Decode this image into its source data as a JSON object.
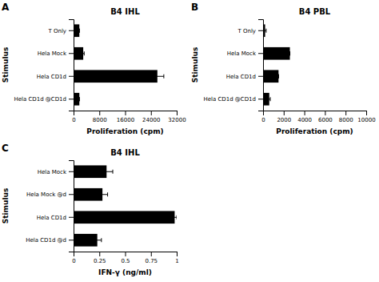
{
  "chart_data": [
    {
      "type": "bar",
      "orientation": "horizontal",
      "title": "B4 IHL",
      "annotations": [
        "A"
      ],
      "categories": [
        "T Only",
        "Hela Mock",
        "Hela CD1d",
        "Hela CD1d @CD1d"
      ],
      "values": [
        1800,
        3000,
        26000,
        1800
      ],
      "errors": [
        0,
        300,
        2000,
        0
      ],
      "color": "#000000",
      "xlim": [
        0,
        32000
      ],
      "xticks": [
        0,
        8000,
        16000,
        24000,
        32000
      ],
      "xlabel": "Proliferation (cpm)",
      "ylabel": "Stimulus",
      "grid": false
    },
    {
      "type": "bar",
      "orientation": "horizontal",
      "title": "B4 PBL",
      "annotations": [
        "B"
      ],
      "categories": [
        "T Only",
        "Hela Mock",
        "Hela CD1d",
        "Hela CD1d @CD1d"
      ],
      "values": [
        200,
        2600,
        1500,
        600
      ],
      "errors": [
        100,
        0,
        0,
        100
      ],
      "color": "#000000",
      "xlim": [
        0,
        10000
      ],
      "xticks": [
        0,
        2000,
        4000,
        6000,
        8000,
        10000
      ],
      "xlabel": "Proliferation (cpm)",
      "ylabel": "Stimulus",
      "grid": false
    },
    {
      "type": "bar",
      "orientation": "horizontal",
      "title": "B4 IHL",
      "annotations": [
        "C"
      ],
      "categories": [
        "Hela Mock",
        "Hela Mock @d",
        "Hela CD1d",
        "Hela CD1d @d"
      ],
      "values": [
        0.32,
        0.28,
        0.98,
        0.23
      ],
      "errors": [
        0.06,
        0.05,
        0.02,
        0.04
      ],
      "color": "#000000",
      "xlim": [
        0,
        1
      ],
      "xticks": [
        0,
        0.25,
        0.5,
        0.75,
        1
      ],
      "xlabel": "IFN-γ (ng/ml)",
      "ylabel": "Stimulus",
      "grid": false
    }
  ]
}
